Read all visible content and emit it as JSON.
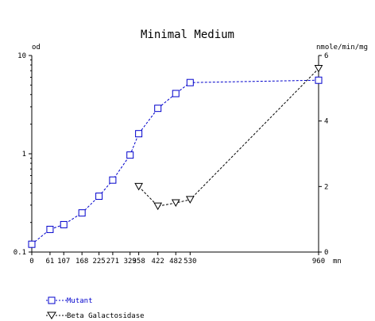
{
  "chart_data": {
    "type": "line",
    "title": "Minimal Medium",
    "xlabel": "mn",
    "y_left_label": "od",
    "y_right_label": "nmole/min/mg",
    "x_ticks": [
      0,
      61,
      107,
      168,
      225,
      271,
      329,
      358,
      422,
      482,
      530,
      960
    ],
    "x_tick_labels": [
      "0",
      "61",
      "107",
      "168",
      "225",
      "271",
      "329",
      "358",
      "422",
      "482",
      "530",
      "960"
    ],
    "xlim": [
      0,
      960
    ],
    "y_left_scale": "log",
    "y_left_lim": [
      0.1,
      10
    ],
    "y_left_ticks": [
      0.1,
      1,
      10
    ],
    "y_left_tick_labels": [
      "0.1",
      "1",
      "10"
    ],
    "y_right_lim": [
      0,
      6
    ],
    "y_right_ticks": [
      0,
      2,
      4,
      6
    ],
    "y_right_tick_labels": [
      "0",
      "2",
      "4",
      "6"
    ],
    "series": [
      {
        "name": "Mutant",
        "axis": "left",
        "color": "#0000cc",
        "marker": "square",
        "x": [
          0,
          61,
          107,
          168,
          225,
          271,
          329,
          358,
          422,
          482,
          530,
          960
        ],
        "y": [
          0.12,
          0.17,
          0.19,
          0.25,
          0.37,
          0.54,
          0.97,
          1.6,
          2.9,
          4.1,
          5.3,
          5.6
        ]
      },
      {
        "name": "Beta Galactosidase",
        "axis": "right",
        "color": "#000000",
        "marker": "triangle-down",
        "x": [
          358,
          422,
          482,
          530,
          960
        ],
        "y": [
          2.0,
          1.4,
          1.5,
          1.6,
          5.6
        ]
      }
    ],
    "grid": false,
    "legend_position": "bottom-left"
  }
}
